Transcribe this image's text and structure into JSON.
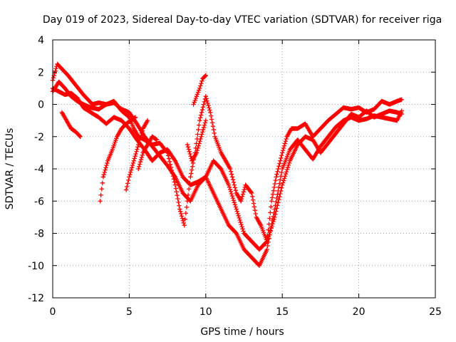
{
  "chart_data": {
    "type": "scatter",
    "title": "Day 019 of 2023, Sidereal Day-to-day VTEC variation (SDTVAR) for receiver riga",
    "xlabel": "GPS time / hours",
    "ylabel": "SDTVAR / TECUs",
    "xlim": [
      0,
      25
    ],
    "ylim": [
      -12,
      4
    ],
    "xticks": [
      0,
      5,
      10,
      15,
      20,
      25
    ],
    "yticks": [
      -12,
      -10,
      -8,
      -6,
      -4,
      -2,
      0,
      2,
      4
    ],
    "grid": true,
    "marker": "+",
    "color": "#ff0000",
    "series": [
      {
        "x": [
          0.0,
          0.3,
          0.6,
          1.0,
          1.5,
          2.0,
          2.3,
          2.6,
          3.0,
          3.5,
          4.0,
          4.5,
          5.0,
          5.3,
          5.6,
          6.0,
          6.5,
          7.0,
          7.5,
          8.0,
          8.3,
          8.6,
          8.8,
          9.0,
          9.3,
          9.6,
          10.0,
          10.3,
          10.6,
          11.0,
          11.3,
          11.6,
          12.0,
          12.3,
          12.6,
          13.0,
          13.3,
          13.6,
          14.0,
          14.3,
          14.6,
          15.0,
          15.3,
          15.6,
          16.0,
          16.5,
          17.0,
          17.5,
          18.0,
          18.5,
          19.0,
          19.5,
          20.0,
          20.5,
          21.0,
          21.5,
          22.0,
          22.5,
          22.8
        ],
        "y": [
          1.5,
          2.5,
          2.2,
          1.8,
          1.2,
          0.6,
          0.3,
          0.0,
          0.1,
          0.0,
          0.2,
          -0.4,
          -0.8,
          -1.5,
          -2.0,
          -2.2,
          -2.5,
          -2.4,
          -3.0,
          -5.0,
          -6.5,
          -7.5,
          -6.0,
          -4.5,
          -3.0,
          -1.0,
          0.5,
          -0.5,
          -2.0,
          -3.0,
          -3.5,
          -4.0,
          -5.5,
          -6.0,
          -5.0,
          -5.5,
          -7.0,
          -7.5,
          -8.5,
          -6.0,
          -4.5,
          -3.0,
          -2.0,
          -1.5,
          -1.5,
          -1.2,
          -2.0,
          -1.5,
          -1.0,
          -0.6,
          -0.2,
          -0.3,
          -0.2,
          -0.5,
          -0.3,
          0.2,
          0.0,
          0.2,
          0.3
        ]
      },
      {
        "x": [
          0.0,
          0.4,
          0.8,
          1.2,
          1.6,
          2.0,
          2.5,
          3.0,
          3.5,
          4.0,
          4.5,
          5.0,
          5.5,
          6.0,
          6.5,
          7.0,
          7.5,
          8.0,
          8.5,
          9.0,
          9.5,
          10.0,
          10.5,
          11.0,
          11.5,
          12.0,
          12.5,
          13.0,
          13.5,
          14.0,
          14.5,
          15.0,
          15.5,
          16.0,
          16.5,
          17.0,
          17.5,
          18.0,
          18.5,
          19.0,
          19.5,
          20.0,
          20.5,
          21.0,
          21.5,
          22.0,
          22.5,
          22.8
        ],
        "y": [
          0.8,
          1.4,
          1.0,
          0.5,
          0.2,
          0.0,
          -0.2,
          -0.3,
          0.0,
          0.1,
          -0.3,
          -0.5,
          -1.2,
          -2.0,
          -2.6,
          -3.2,
          -3.8,
          -4.5,
          -5.5,
          -6.0,
          -5.0,
          -4.5,
          -3.5,
          -4.0,
          -5.0,
          -6.5,
          -8.0,
          -8.5,
          -9.0,
          -8.5,
          -7.0,
          -5.0,
          -3.5,
          -2.5,
          -2.0,
          -2.2,
          -3.0,
          -2.4,
          -1.8,
          -1.2,
          -0.6,
          -0.8,
          -0.4,
          -0.8,
          -0.6,
          -0.4,
          -0.5,
          -0.6
        ]
      },
      {
        "x": [
          0.0,
          0.4,
          0.8,
          1.2,
          1.6,
          2.0,
          2.5,
          3.0,
          3.5,
          4.0,
          4.5,
          5.0,
          5.5,
          6.0,
          6.5,
          7.0,
          7.5,
          8.0,
          8.5,
          9.0,
          9.5,
          10.0,
          10.5,
          11.0,
          11.5,
          12.0,
          12.5,
          13.0,
          13.5,
          14.0,
          14.5,
          15.0,
          15.5,
          16.0,
          16.5,
          17.0,
          17.5,
          18.0,
          18.5,
          19.0,
          19.5,
          20.0,
          20.5,
          21.0,
          21.5,
          22.0,
          22.5,
          22.8
        ],
        "y": [
          1.0,
          0.8,
          0.6,
          0.7,
          0.4,
          -0.2,
          -0.5,
          -0.8,
          -1.2,
          -0.8,
          -1.0,
          -1.5,
          -2.2,
          -2.8,
          -3.5,
          -3.0,
          -2.8,
          -3.5,
          -4.5,
          -5.0,
          -4.8,
          -4.5,
          -5.5,
          -6.5,
          -7.5,
          -8.0,
          -9.0,
          -9.5,
          -10.0,
          -9.0,
          -6.5,
          -4.0,
          -2.8,
          -2.2,
          -2.8,
          -3.4,
          -2.6,
          -2.0,
          -1.4,
          -1.0,
          -0.8,
          -1.0,
          -0.9,
          -0.7,
          -0.8,
          -0.9,
          -1.0,
          -0.4
        ]
      },
      {
        "x": [
          0.6,
          0.9,
          1.2,
          1.5,
          1.8
        ],
        "y": [
          -0.5,
          -1.0,
          -1.5,
          -1.7,
          -2.0
        ]
      },
      {
        "x": [
          3.1,
          3.3,
          3.6,
          3.9,
          4.2,
          4.5,
          4.8,
          5.1,
          5.4
        ],
        "y": [
          -6.0,
          -4.5,
          -3.5,
          -2.8,
          -2.0,
          -1.5,
          -1.2,
          -1.0,
          -0.8
        ]
      },
      {
        "x": [
          4.8,
          5.0,
          5.3,
          5.6,
          5.9,
          6.2
        ],
        "y": [
          -5.3,
          -4.5,
          -3.5,
          -2.5,
          -1.5,
          -1.0
        ]
      },
      {
        "x": [
          5.6,
          5.9,
          6.2,
          6.5,
          6.8
        ],
        "y": [
          -4.0,
          -3.0,
          -2.5,
          -2.0,
          -2.2
        ]
      },
      {
        "x": [
          8.8,
          9.1,
          9.4,
          9.7,
          10.0
        ],
        "y": [
          -2.5,
          -3.5,
          -3.0,
          -2.0,
          -1.0
        ]
      },
      {
        "x": [
          9.2,
          9.4,
          9.6,
          9.8,
          10.0
        ],
        "y": [
          0.0,
          0.5,
          1.0,
          1.6,
          1.8
        ]
      }
    ]
  }
}
